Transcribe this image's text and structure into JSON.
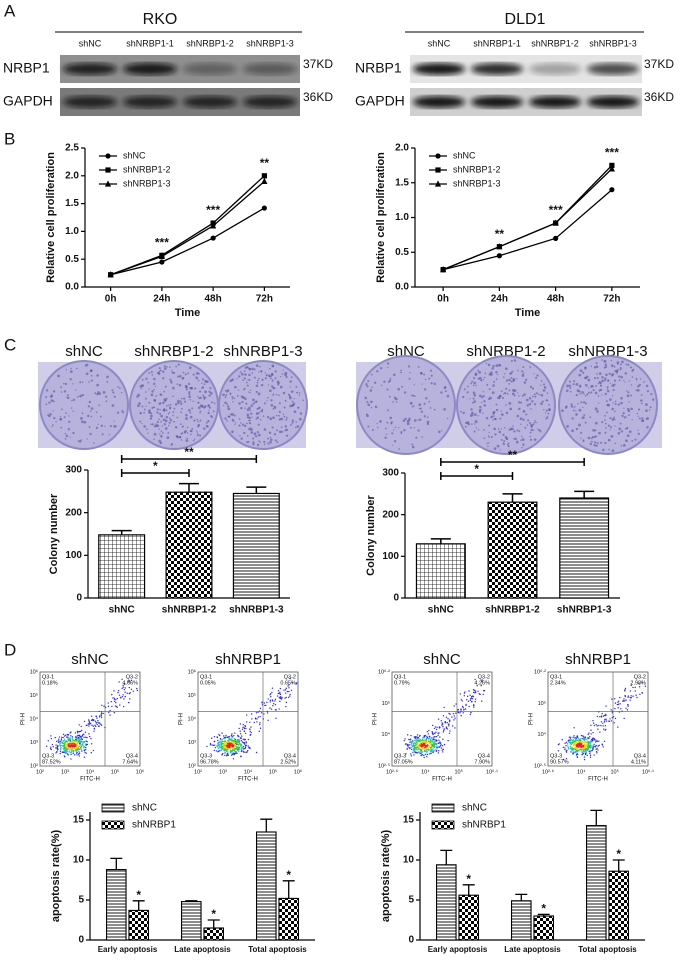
{
  "panel_labels": [
    "A",
    "B",
    "C",
    "D"
  ],
  "blots": [
    {
      "title": "RKO",
      "lanes": [
        "shNC",
        "shNRBP1-1",
        "shNRBP1-2",
        "shNRBP1-3"
      ],
      "rows": [
        {
          "protein": "NRBP1",
          "size": "37KD"
        },
        {
          "protein": "GAPDH",
          "size": "36KD"
        }
      ]
    },
    {
      "title": "DLD1",
      "lanes": [
        "shNC",
        "shNRBP1-1",
        "shNRBP1-2",
        "shNRBP1-3"
      ],
      "rows": [
        {
          "protein": "NRBP1",
          "size": "37KD"
        },
        {
          "protein": "GAPDH",
          "size": "36KD"
        }
      ]
    }
  ],
  "colony_images": [
    {
      "labels": [
        "shNC",
        "shNRBP1-2",
        "shNRBP1-3"
      ]
    },
    {
      "labels": [
        "shNC",
        "shNRBP1-2",
        "shNRBP1-3"
      ]
    }
  ],
  "flow_plots": [
    {
      "title": "shNC",
      "x_label": "FITC-H",
      "y_label": "PI-H",
      "x_ticks": [
        "10²",
        "10³",
        "10⁴",
        "10⁵",
        "10⁶"
      ],
      "y_ticks": [
        "10²",
        "10³",
        "10⁴",
        "10⁵",
        "10⁶"
      ],
      "quadrants": [
        {
          "name": "Q3-1",
          "pct": "0.18%"
        },
        {
          "name": "Q3-2",
          "pct": "4.66%"
        },
        {
          "name": "Q3-3",
          "pct": "87.52%"
        },
        {
          "name": "Q3-4",
          "pct": "7.64%"
        }
      ]
    },
    {
      "title": "shNRBP1",
      "x_label": "FITC-H",
      "y_label": "PI-H",
      "x_ticks": [
        "10²",
        "10³",
        "10⁴",
        "10⁵",
        "10⁶"
      ],
      "y_ticks": [
        "10²",
        "10³",
        "10⁴",
        "10⁵",
        "10⁶"
      ],
      "quadrants": [
        {
          "name": "Q3-1",
          "pct": "0.05%"
        },
        {
          "name": "Q3-2",
          "pct": "0.65%"
        },
        {
          "name": "Q3-3",
          "pct": "96.78%"
        },
        {
          "name": "Q3-4",
          "pct": "2.52%"
        }
      ]
    },
    {
      "title": "shNC",
      "x_label": "FITC-H",
      "y_label": "PI-H",
      "x_ticks": [
        "10²·⁶",
        "10⁴",
        "10⁵",
        "10⁶·¹"
      ],
      "y_ticks": [
        "10²·⁵",
        "10⁴",
        "10⁵",
        "10⁶·²"
      ],
      "quadrants": [
        {
          "name": "Q3-1",
          "pct": "0.79%"
        },
        {
          "name": "Q3-2",
          "pct": "4.26%"
        },
        {
          "name": "Q3-3",
          "pct": "87.05%"
        },
        {
          "name": "Q3-4",
          "pct": "7.90%"
        }
      ]
    },
    {
      "title": "shNRBP1",
      "x_label": "FITC-H",
      "y_label": "PI-H",
      "x_ticks": [
        "10²·⁶",
        "10⁴",
        "10⁵",
        "10⁶·¹"
      ],
      "y_ticks": [
        "10²·⁵",
        "10⁴",
        "10⁵",
        "10⁶·²"
      ],
      "quadrants": [
        {
          "name": "Q3-1",
          "pct": "2.34%"
        },
        {
          "name": "Q3-2",
          "pct": "2.98%"
        },
        {
          "name": "Q3-3",
          "pct": "90.57%"
        },
        {
          "name": "Q3-4",
          "pct": "4.11%"
        }
      ]
    }
  ],
  "chart_data": [
    {
      "type": "line",
      "x_label": "Time",
      "y_label": "Relative cell proliferation",
      "categories": [
        "0h",
        "24h",
        "48h",
        "72h"
      ],
      "series": [
        {
          "name": "shNC",
          "color": "#000000",
          "marker": "circle",
          "values": [
            0.22,
            0.45,
            0.88,
            1.42
          ]
        },
        {
          "name": "shNRBP1-2",
          "color": "#000000",
          "marker": "square",
          "values": [
            0.22,
            0.57,
            1.15,
            2.0
          ]
        },
        {
          "name": "shNRBP1-3",
          "color": "#000000",
          "marker": "triangle",
          "values": [
            0.22,
            0.55,
            1.1,
            1.9
          ]
        }
      ],
      "annotations": [
        null,
        "***",
        "***",
        "**"
      ],
      "ylim": [
        0,
        2.5
      ],
      "yticks": [
        {
          "value": 0,
          "label": "0.0"
        },
        0.5,
        {
          "value": 1,
          "label": "1.0"
        },
        1.5,
        {
          "value": 2,
          "label": "2.0"
        },
        2.5
      ]
    },
    {
      "type": "line",
      "x_label": "Time",
      "y_label": "Relative cell proliferation",
      "categories": [
        "0h",
        "24h",
        "48h",
        "72h"
      ],
      "series": [
        {
          "name": "shNC",
          "color": "#000000",
          "marker": "circle",
          "values": [
            0.25,
            0.45,
            0.7,
            1.4
          ]
        },
        {
          "name": "shNRBP1-2",
          "color": "#000000",
          "marker": "square",
          "values": [
            0.25,
            0.58,
            0.92,
            1.75
          ]
        },
        {
          "name": "shNRBP1-3",
          "color": "#000000",
          "marker": "triangle",
          "values": [
            0.25,
            0.58,
            0.92,
            1.7
          ]
        }
      ],
      "annotations": [
        null,
        "**",
        "***",
        "***"
      ],
      "ylim": [
        0,
        2.0
      ],
      "yticks": [
        {
          "value": 0,
          "label": "0.0"
        },
        0.5,
        {
          "value": 1,
          "label": "1.0"
        },
        1.5,
        {
          "value": 2,
          "label": "2.0"
        }
      ]
    },
    {
      "type": "bar",
      "y_label": "Colony number",
      "categories": [
        "shNC",
        "shNRBP1-2",
        "shNRBP1-3"
      ],
      "values": [
        148,
        248,
        245
      ],
      "errors": [
        10,
        20,
        15
      ],
      "patterns": [
        "grid",
        "checker",
        "hlines"
      ],
      "significance": [
        {
          "groups": [
            "shNC",
            "shNRBP1-2"
          ],
          "text": "*"
        },
        {
          "groups": [
            "shNC",
            "shNRBP1-3"
          ],
          "text": "**"
        }
      ],
      "ylim": [
        0,
        300
      ],
      "yticks": [
        0,
        100,
        200,
        300
      ]
    },
    {
      "type": "bar",
      "y_label": "Colony number",
      "categories": [
        "shNC",
        "shNRBP1-2",
        "shNRBP1-3"
      ],
      "values": [
        130,
        230,
        240
      ],
      "errors": [
        12,
        20,
        16
      ],
      "patterns": [
        "grid",
        "checker",
        "hlines"
      ],
      "significance": [
        {
          "groups": [
            "shNC",
            "shNRBP1-2"
          ],
          "text": "*"
        },
        {
          "groups": [
            "shNC",
            "shNRBP1-3"
          ],
          "text": "**"
        }
      ],
      "ylim": [
        0,
        300
      ],
      "yticks": [
        0,
        100,
        200,
        300
      ]
    },
    {
      "type": "grouped_bar",
      "y_label": "apoptosis rate(%)",
      "categories": [
        "Early apoptosis",
        "Late apoptosis",
        "Total apoptosis"
      ],
      "series": [
        {
          "name": "shNC",
          "pattern": "hlines",
          "values": [
            8.8,
            4.8,
            13.5
          ],
          "errors": [
            1.4,
            0.1,
            1.6
          ]
        },
        {
          "name": "shNRBP1",
          "pattern": "checker",
          "values": [
            3.7,
            1.5,
            5.2
          ],
          "errors": [
            1.2,
            1.0,
            2.2
          ],
          "annotations": [
            "*",
            "*",
            "*"
          ]
        }
      ],
      "ylim": [
        0,
        16
      ],
      "yticks": [
        0,
        5,
        10,
        15
      ]
    },
    {
      "type": "grouped_bar",
      "y_label": "apoptosis rate(%)",
      "categories": [
        "Early apoptosis",
        "Late apoptosis",
        "Total apoptosis"
      ],
      "series": [
        {
          "name": "shNC",
          "pattern": "hlines",
          "values": [
            9.4,
            4.9,
            14.3
          ],
          "errors": [
            1.8,
            0.8,
            1.9
          ]
        },
        {
          "name": "shNRBP1",
          "pattern": "checker",
          "values": [
            5.6,
            3.0,
            8.6
          ],
          "errors": [
            1.3,
            0.2,
            1.4
          ],
          "annotations": [
            "*",
            "*",
            "*"
          ]
        }
      ],
      "ylim": [
        0,
        16
      ],
      "yticks": [
        0,
        5,
        10,
        15
      ]
    }
  ]
}
